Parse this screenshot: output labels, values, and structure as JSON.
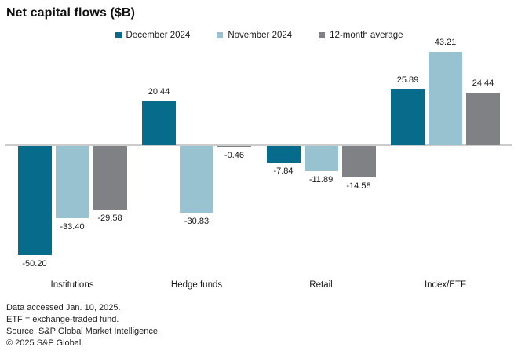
{
  "title": "Net capital flows ($B)",
  "chart_data": {
    "type": "bar",
    "title": "Net capital flows ($B)",
    "categories": [
      "Institutions",
      "Hedge funds",
      "Retail",
      "Index/ETF"
    ],
    "series": [
      {
        "name": "December 2024",
        "color": "#076c8c",
        "values": [
          -50.2,
          20.44,
          -7.84,
          25.89
        ]
      },
      {
        "name": "November 2024",
        "color": "#98c2cf",
        "values": [
          -33.4,
          -30.83,
          -11.89,
          43.21
        ]
      },
      {
        "name": "12-month average",
        "color": "#7f8184",
        "values": [
          -29.58,
          -0.46,
          -14.58,
          24.44
        ]
      }
    ],
    "value_labels": true,
    "value_decimals": 2,
    "ylim": [
      -55,
      48
    ],
    "gridlines": false,
    "legend_position": "top",
    "zero_line_color": "#cccccc"
  },
  "footnotes": [
    "Data accessed Jan. 10, 2025.",
    "ETF = exchange-traded fund.",
    "Source: S&P Global Market Intelligence.",
    "© 2025 S&P Global."
  ]
}
